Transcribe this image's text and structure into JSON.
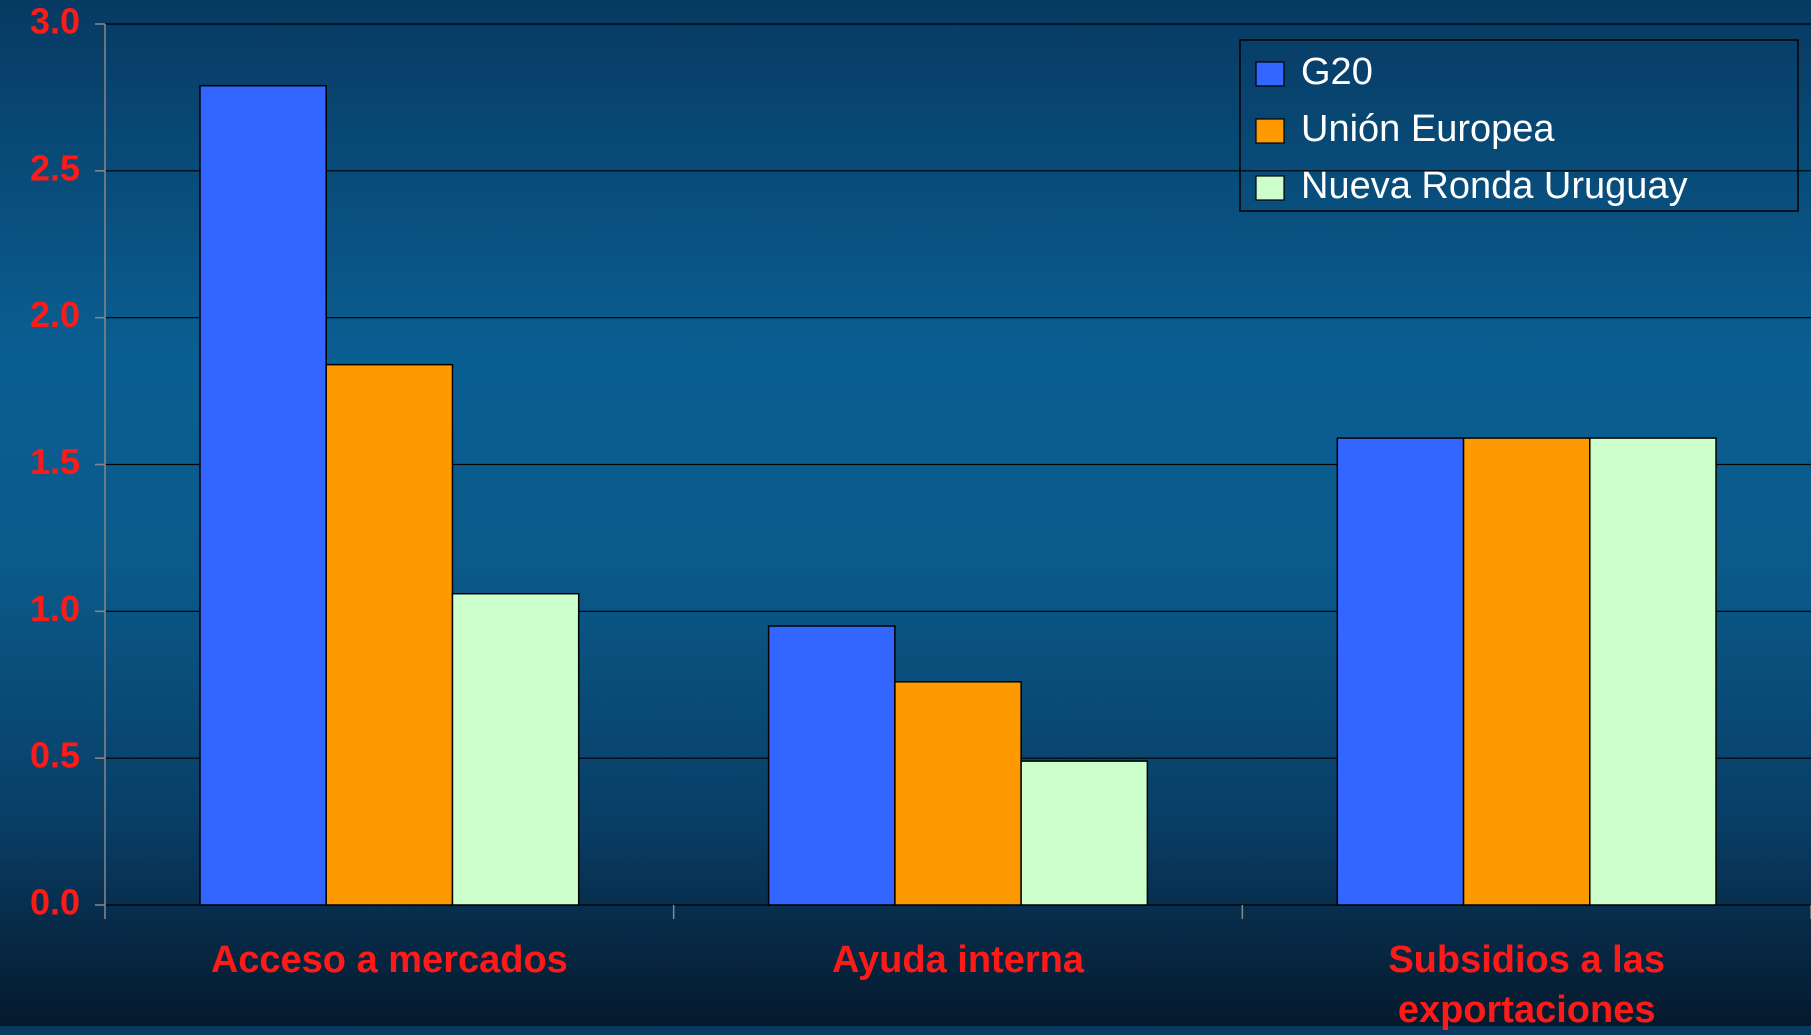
{
  "chart_data": {
    "type": "bar",
    "categories": [
      "Acceso a mercados",
      "Ayuda interna",
      "Subsidios a las exportaciones"
    ],
    "series": [
      {
        "name": "G20",
        "color": "#3366ff",
        "values": [
          2.79,
          0.95,
          1.59
        ]
      },
      {
        "name": "Unión Europea",
        "color": "#ff9900",
        "values": [
          1.84,
          0.76,
          1.59
        ]
      },
      {
        "name": "Nueva Ronda Uruguay",
        "color": "#ccffcc",
        "values": [
          1.06,
          0.49,
          1.59
        ]
      }
    ],
    "ylim": [
      0,
      3
    ],
    "yticks": [
      {
        "value": 0,
        "label": "0.0"
      },
      0.5,
      {
        "value": 1,
        "label": "1.0"
      },
      1.5,
      {
        "value": 2,
        "label": "2.0"
      },
      2.5,
      {
        "value": 3,
        "label": "3.0"
      }
    ],
    "grid": true,
    "legend": "top-right"
  }
}
